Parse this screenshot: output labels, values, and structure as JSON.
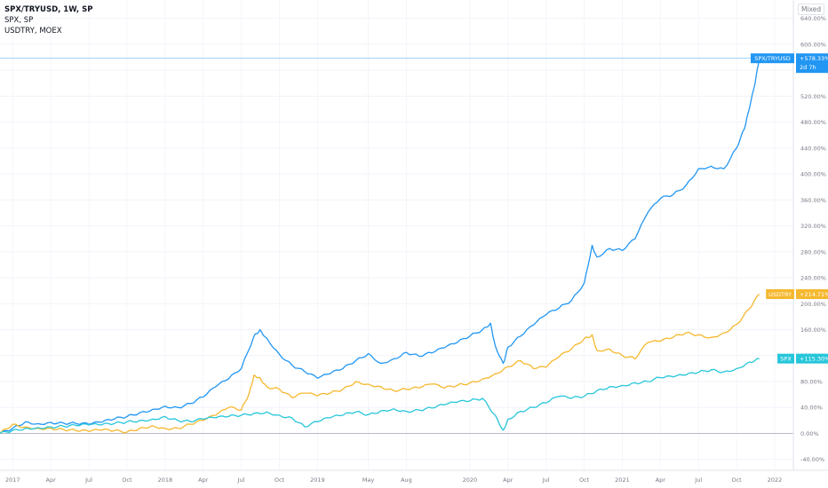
{
  "legend": {
    "title": "SPX/TRYUSD, 1W, SP",
    "line2": "SPX, SP",
    "line3": "USDTRY, MOEX"
  },
  "scale_mode": "Mixed",
  "chart_data": {
    "type": "line",
    "x_ticks": [
      "2017",
      "Apr",
      "Jul",
      "Oct",
      "2018",
      "Apr",
      "Jul",
      "Oct",
      "2019",
      "May",
      "Aug",
      "2020",
      "Apr",
      "Jul",
      "Oct",
      "2021",
      "Apr",
      "Jul",
      "Oct",
      "2022"
    ],
    "x_tick_dates": [
      "2017-01",
      "2017-04",
      "2017-07",
      "2017-10",
      "2018-01",
      "2018-04",
      "2018-07",
      "2018-10",
      "2019-01",
      "2019-05",
      "2019-08",
      "2020-01",
      "2020-04",
      "2020-07",
      "2020-10",
      "2021-01",
      "2021-04",
      "2021-07",
      "2021-10",
      "2022-01"
    ],
    "y_ticks": [
      "-40.00%",
      "0.00%",
      "40.00%",
      "80.00%",
      "120.00%",
      "160.00%",
      "200.00%",
      "240.00%",
      "280.00%",
      "320.00%",
      "360.00%",
      "400.00%",
      "440.00%",
      "480.00%",
      "520.00%",
      "560.00%",
      "600.00%",
      "640.00%"
    ],
    "y_tick_values": [
      -40,
      0,
      40,
      80,
      120,
      160,
      200,
      240,
      280,
      320,
      360,
      400,
      440,
      480,
      520,
      560,
      600,
      640
    ],
    "ylim": [
      -50,
      660
    ],
    "series": [
      {
        "name": "SPX/TRYUSD",
        "color": "#2196f3",
        "label": "+578.33%",
        "countdown": "2d 7h",
        "points": [
          [
            "2016-12",
            0
          ],
          [
            "2017-01",
            8
          ],
          [
            "2017-02",
            18
          ],
          [
            "2017-03",
            15
          ],
          [
            "2017-04",
            17
          ],
          [
            "2017-05",
            16
          ],
          [
            "2017-06",
            15
          ],
          [
            "2017-07",
            14
          ],
          [
            "2017-08",
            17
          ],
          [
            "2017-09",
            22
          ],
          [
            "2017-10",
            26
          ],
          [
            "2017-11",
            32
          ],
          [
            "2017-12",
            37
          ],
          [
            "2018-01",
            42
          ],
          [
            "2018-02",
            40
          ],
          [
            "2018-03",
            46
          ],
          [
            "2018-04",
            56
          ],
          [
            "2018-05",
            72
          ],
          [
            "2018-06",
            84
          ],
          [
            "2018-07",
            100
          ],
          [
            "2018-08",
            150
          ],
          [
            "2018-08-15",
            160
          ],
          [
            "2018-09",
            147
          ],
          [
            "2018-10",
            122
          ],
          [
            "2018-11",
            105
          ],
          [
            "2018-12",
            95
          ],
          [
            "2019-01",
            85
          ],
          [
            "2019-02",
            92
          ],
          [
            "2019-03",
            100
          ],
          [
            "2019-04",
            112
          ],
          [
            "2019-05",
            123
          ],
          [
            "2019-06",
            108
          ],
          [
            "2019-07",
            115
          ],
          [
            "2019-08",
            125
          ],
          [
            "2019-09",
            119
          ],
          [
            "2019-10",
            124
          ],
          [
            "2019-11",
            132
          ],
          [
            "2019-12",
            140
          ],
          [
            "2020-01",
            150
          ],
          [
            "2020-02",
            160
          ],
          [
            "2020-02-20",
            170
          ],
          [
            "2020-03",
            135
          ],
          [
            "2020-03-20",
            108
          ],
          [
            "2020-04",
            133
          ],
          [
            "2020-05",
            150
          ],
          [
            "2020-06",
            167
          ],
          [
            "2020-07",
            183
          ],
          [
            "2020-08",
            193
          ],
          [
            "2020-09",
            205
          ],
          [
            "2020-10",
            232
          ],
          [
            "2020-10-20",
            290
          ],
          [
            "2020-11",
            272
          ],
          [
            "2020-12",
            285
          ],
          [
            "2021-01",
            282
          ],
          [
            "2021-02",
            300
          ],
          [
            "2021-03",
            340
          ],
          [
            "2021-04",
            362
          ],
          [
            "2021-05",
            368
          ],
          [
            "2021-06",
            382
          ],
          [
            "2021-07",
            408
          ],
          [
            "2021-08",
            412
          ],
          [
            "2021-09",
            408
          ],
          [
            "2021-10",
            440
          ],
          [
            "2021-10-20",
            470
          ],
          [
            "2021-11",
            500
          ],
          [
            "2021-11-15",
            540
          ],
          [
            "2021-11-25",
            578.33
          ]
        ]
      },
      {
        "name": "USDTRY",
        "color": "#f5b82e",
        "label": "+214.71%",
        "points": [
          [
            "2016-12",
            0
          ],
          [
            "2017-01",
            14
          ],
          [
            "2017-02",
            10
          ],
          [
            "2017-03",
            8
          ],
          [
            "2017-04",
            8
          ],
          [
            "2017-05",
            6
          ],
          [
            "2017-06",
            4
          ],
          [
            "2017-07",
            3
          ],
          [
            "2017-08",
            5
          ],
          [
            "2017-09",
            4
          ],
          [
            "2017-10",
            2
          ],
          [
            "2017-11",
            8
          ],
          [
            "2017-12",
            12
          ],
          [
            "2018-01",
            8
          ],
          [
            "2018-02",
            8
          ],
          [
            "2018-03",
            14
          ],
          [
            "2018-04",
            20
          ],
          [
            "2018-05",
            28
          ],
          [
            "2018-06",
            40
          ],
          [
            "2018-07",
            36
          ],
          [
            "2018-07-20",
            62
          ],
          [
            "2018-08",
            90
          ],
          [
            "2018-08-15",
            86
          ],
          [
            "2018-09",
            72
          ],
          [
            "2018-10",
            68
          ],
          [
            "2018-11",
            55
          ],
          [
            "2018-12",
            62
          ],
          [
            "2019-01",
            58
          ],
          [
            "2019-02",
            62
          ],
          [
            "2019-03",
            68
          ],
          [
            "2019-04",
            80
          ],
          [
            "2019-05",
            76
          ],
          [
            "2019-06",
            72
          ],
          [
            "2019-07",
            66
          ],
          [
            "2019-08",
            68
          ],
          [
            "2019-09",
            70
          ],
          [
            "2019-10",
            76
          ],
          [
            "2019-11",
            70
          ],
          [
            "2019-12",
            74
          ],
          [
            "2020-01",
            78
          ],
          [
            "2020-02",
            84
          ],
          [
            "2020-03",
            92
          ],
          [
            "2020-04",
            103
          ],
          [
            "2020-05",
            112
          ],
          [
            "2020-06",
            100
          ],
          [
            "2020-07",
            102
          ],
          [
            "2020-08",
            118
          ],
          [
            "2020-09",
            130
          ],
          [
            "2020-10",
            146
          ],
          [
            "2020-10-20",
            152
          ],
          [
            "2020-11",
            128
          ],
          [
            "2020-12",
            130
          ],
          [
            "2021-01",
            120
          ],
          [
            "2021-02",
            115
          ],
          [
            "2021-03",
            140
          ],
          [
            "2021-04",
            142
          ],
          [
            "2021-05",
            148
          ],
          [
            "2021-06",
            155
          ],
          [
            "2021-07",
            152
          ],
          [
            "2021-08",
            148
          ],
          [
            "2021-09",
            155
          ],
          [
            "2021-10",
            168
          ],
          [
            "2021-11",
            192
          ],
          [
            "2021-11-25",
            214.71
          ]
        ]
      },
      {
        "name": "SPX",
        "color": "#26c6da",
        "label": "+115.30%",
        "points": [
          [
            "2016-12",
            0
          ],
          [
            "2017-01",
            5
          ],
          [
            "2017-02",
            8
          ],
          [
            "2017-03",
            9
          ],
          [
            "2017-04",
            10
          ],
          [
            "2017-05",
            11
          ],
          [
            "2017-06",
            12
          ],
          [
            "2017-07",
            13
          ],
          [
            "2017-08",
            13
          ],
          [
            "2017-09",
            15
          ],
          [
            "2017-10",
            18
          ],
          [
            "2017-11",
            20
          ],
          [
            "2017-12",
            22
          ],
          [
            "2018-01",
            26
          ],
          [
            "2018-02",
            20
          ],
          [
            "2018-03",
            18
          ],
          [
            "2018-04",
            22
          ],
          [
            "2018-05",
            24
          ],
          [
            "2018-06",
            26
          ],
          [
            "2018-07",
            28
          ],
          [
            "2018-08",
            31
          ],
          [
            "2018-09",
            33
          ],
          [
            "2018-10",
            28
          ],
          [
            "2018-11",
            24
          ],
          [
            "2018-12",
            10
          ],
          [
            "2019-01",
            18
          ],
          [
            "2019-02",
            24
          ],
          [
            "2019-03",
            28
          ],
          [
            "2019-04",
            33
          ],
          [
            "2019-05",
            29
          ],
          [
            "2019-06",
            35
          ],
          [
            "2019-07",
            38
          ],
          [
            "2019-08",
            34
          ],
          [
            "2019-09",
            36
          ],
          [
            "2019-10",
            39
          ],
          [
            "2019-11",
            44
          ],
          [
            "2019-12",
            48
          ],
          [
            "2020-01",
            50
          ],
          [
            "2020-02",
            54
          ],
          [
            "2020-03",
            28
          ],
          [
            "2020-03-20",
            5
          ],
          [
            "2020-04",
            22
          ],
          [
            "2020-05",
            34
          ],
          [
            "2020-06",
            40
          ],
          [
            "2020-07",
            47
          ],
          [
            "2020-08",
            57
          ],
          [
            "2020-09",
            54
          ],
          [
            "2020-10",
            57
          ],
          [
            "2020-11",
            66
          ],
          [
            "2020-12",
            72
          ],
          [
            "2021-01",
            74
          ],
          [
            "2021-02",
            78
          ],
          [
            "2021-03",
            80
          ],
          [
            "2021-04",
            86
          ],
          [
            "2021-05",
            87
          ],
          [
            "2021-06",
            90
          ],
          [
            "2021-07",
            94
          ],
          [
            "2021-08",
            98
          ],
          [
            "2021-09",
            95
          ],
          [
            "2021-10",
            100
          ],
          [
            "2021-11",
            110
          ],
          [
            "2021-11-25",
            115.3
          ]
        ]
      }
    ]
  }
}
